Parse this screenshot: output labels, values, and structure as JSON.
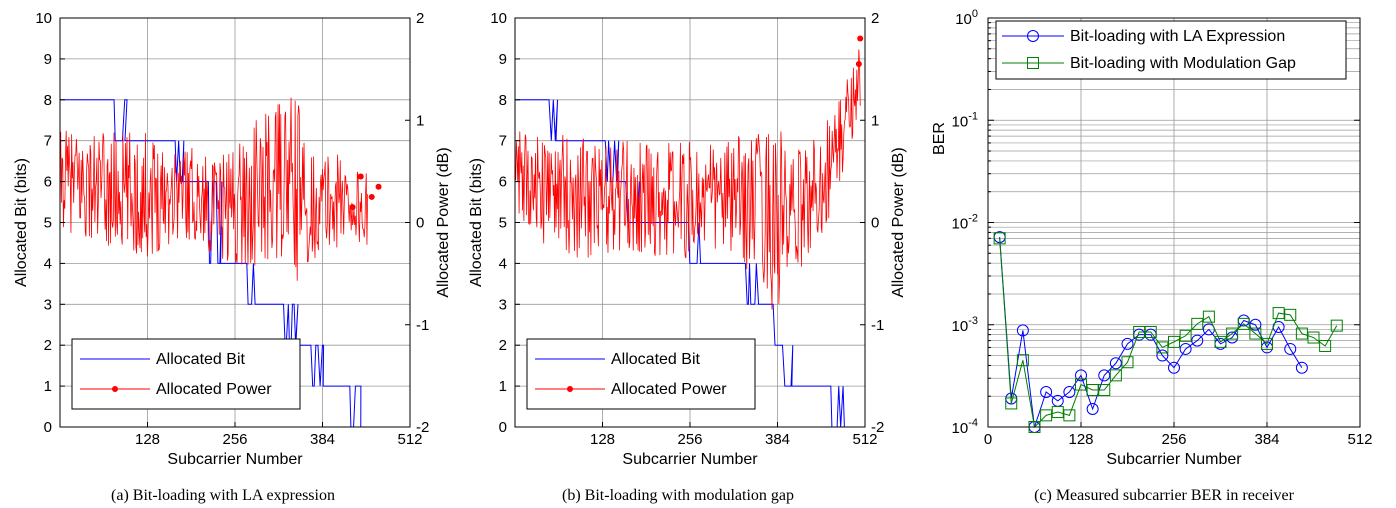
{
  "chart_data": [
    {
      "type": "line",
      "caption": "(a) Bit-loading with LA expression",
      "xlabel": "Subcarrier Number",
      "ylabel": "Allocated Bit (bits)",
      "y2label": "Allocated Power (dB)",
      "xlim": [
        0,
        512
      ],
      "ylim": [
        0,
        10
      ],
      "y2lim": [
        -2,
        2
      ],
      "xticks": [
        128,
        256,
        384,
        512
      ],
      "yticks": [
        0,
        1,
        2,
        3,
        4,
        5,
        6,
        7,
        8,
        9,
        10
      ],
      "y2ticks": [
        -2,
        -1,
        0,
        1,
        2
      ],
      "grid": true,
      "legend_position": "bottom-left",
      "series": [
        {
          "name": "Allocated Bit",
          "axis": "left",
          "color": "#0000ff",
          "step_segments": [
            [
              0,
              8
            ],
            [
              95,
              7
            ],
            [
              180,
              6
            ],
            [
              235,
              4
            ],
            [
              285,
              3
            ],
            [
              345,
              2
            ],
            [
              385,
              1
            ],
            [
              440,
              0
            ]
          ],
          "end": 470
        },
        {
          "name": "Allocated Power",
          "axis": "right",
          "color": "#ff0000",
          "range_profile": [
            [
              0,
              -0.2,
              0.9
            ],
            [
              60,
              -0.5,
              0.9
            ],
            [
              120,
              -0.6,
              0.9
            ],
            [
              180,
              -0.3,
              0.8
            ],
            [
              230,
              -0.5,
              0.6
            ],
            [
              280,
              -0.8,
              1.0
            ],
            [
              330,
              -0.6,
              1.2
            ],
            [
              348,
              -1.1,
              1.3
            ],
            [
              360,
              -0.6,
              0.7
            ],
            [
              420,
              -0.4,
              0.7
            ],
            [
              450,
              -0.5,
              0.5
            ]
          ],
          "end": 450,
          "points": [
            [
              428,
              0.15
            ],
            [
              440,
              0.45
            ],
            [
              456,
              0.25
            ],
            [
              466,
              0.35
            ]
          ]
        }
      ]
    },
    {
      "type": "line",
      "caption": "(b) Bit-loading with modulation gap",
      "xlabel": "Subcarrier Number",
      "ylabel": "Allocated Bit (bits)",
      "y2label": "Allocated Power (dB)",
      "xlim": [
        0,
        512
      ],
      "ylim": [
        0,
        10
      ],
      "y2lim": [
        -2,
        2
      ],
      "xticks": [
        128,
        256,
        384,
        512
      ],
      "yticks": [
        0,
        1,
        2,
        3,
        4,
        5,
        6,
        7,
        8,
        9,
        10
      ],
      "y2ticks": [
        -2,
        -1,
        0,
        1,
        2
      ],
      "grid": true,
      "legend_position": "bottom-left",
      "series": [
        {
          "name": "Allocated Bit",
          "axis": "left",
          "color": "#0000ff",
          "step_segments": [
            [
              0,
              8
            ],
            [
              60,
              7
            ],
            [
              150,
              6
            ],
            [
              180,
              5
            ],
            [
              270,
              4
            ],
            [
              355,
              3
            ],
            [
              380,
              2
            ],
            [
              405,
              1
            ],
            [
              480,
              0
            ]
          ],
          "end": 500
        },
        {
          "name": "Allocated Power",
          "axis": "right",
          "color": "#ff0000",
          "range_profile": [
            [
              0,
              -0.2,
              0.9
            ],
            [
              60,
              -0.5,
              0.9
            ],
            [
              120,
              -0.6,
              0.8
            ],
            [
              180,
              -0.5,
              0.8
            ],
            [
              240,
              -0.6,
              0.8
            ],
            [
              300,
              -0.5,
              0.8
            ],
            [
              360,
              -0.8,
              0.9
            ],
            [
              384,
              -1.4,
              1.1
            ],
            [
              400,
              -0.8,
              0.6
            ],
            [
              440,
              -0.5,
              0.9
            ],
            [
              470,
              0.0,
              1.2
            ],
            [
              490,
              0.6,
              1.5
            ],
            [
              505,
              1.0,
              1.8
            ]
          ],
          "end": 505,
          "points": [
            [
              503,
              1.55
            ],
            [
              505,
              1.8
            ]
          ]
        }
      ]
    },
    {
      "type": "line",
      "caption": "(c) Measured subcarrier BER in receiver",
      "xlabel": "Subcarrier Number",
      "ylabel": "BER",
      "xlim": [
        0,
        512
      ],
      "ylim": [
        0.0001,
        1
      ],
      "yscale": "log",
      "xticks": [
        0,
        128,
        256,
        384,
        512
      ],
      "yticks": [
        "10^-4",
        "10^-3",
        "10^-2",
        "10^-1",
        "10^0"
      ],
      "grid": true,
      "legend_position": "top",
      "x": [
        16,
        32,
        48,
        64,
        80,
        96,
        112,
        128,
        144,
        160,
        176,
        192,
        208,
        224,
        240,
        256,
        272,
        288,
        304,
        320,
        336,
        352,
        368,
        384,
        400,
        416,
        432,
        448,
        464,
        480
      ],
      "series": [
        {
          "name": "Bit-loading with LA Expression",
          "color": "#0000ff",
          "marker": "circle",
          "values": [
            0.0072,
            0.00019,
            0.00088,
            0.0001,
            0.00022,
            0.00018,
            0.00022,
            0.00032,
            0.00015,
            0.00032,
            0.00042,
            0.00065,
            0.0008,
            0.0008,
            0.0005,
            0.00038,
            0.00058,
            0.0007,
            0.0009,
            0.00065,
            0.00075,
            0.0011,
            0.001,
            0.0006,
            0.00095,
            0.00058,
            0.00038,
            null,
            null,
            null
          ]
        },
        {
          "name": "Bit-loading with Modulation Gap",
          "color": "#008000",
          "marker": "square",
          "values": [
            0.007,
            0.00017,
            0.00045,
            0.0001,
            0.00013,
            0.00014,
            0.00013,
            0.00026,
            0.00023,
            0.00023,
            0.00032,
            0.00043,
            0.00085,
            0.00085,
            0.0006,
            0.00068,
            0.00078,
            0.00102,
            0.0012,
            0.00068,
            0.00082,
            0.00102,
            0.00082,
            0.00065,
            0.0013,
            0.00125,
            0.00082,
            0.00075,
            0.00062,
            0.00098
          ]
        }
      ]
    }
  ]
}
